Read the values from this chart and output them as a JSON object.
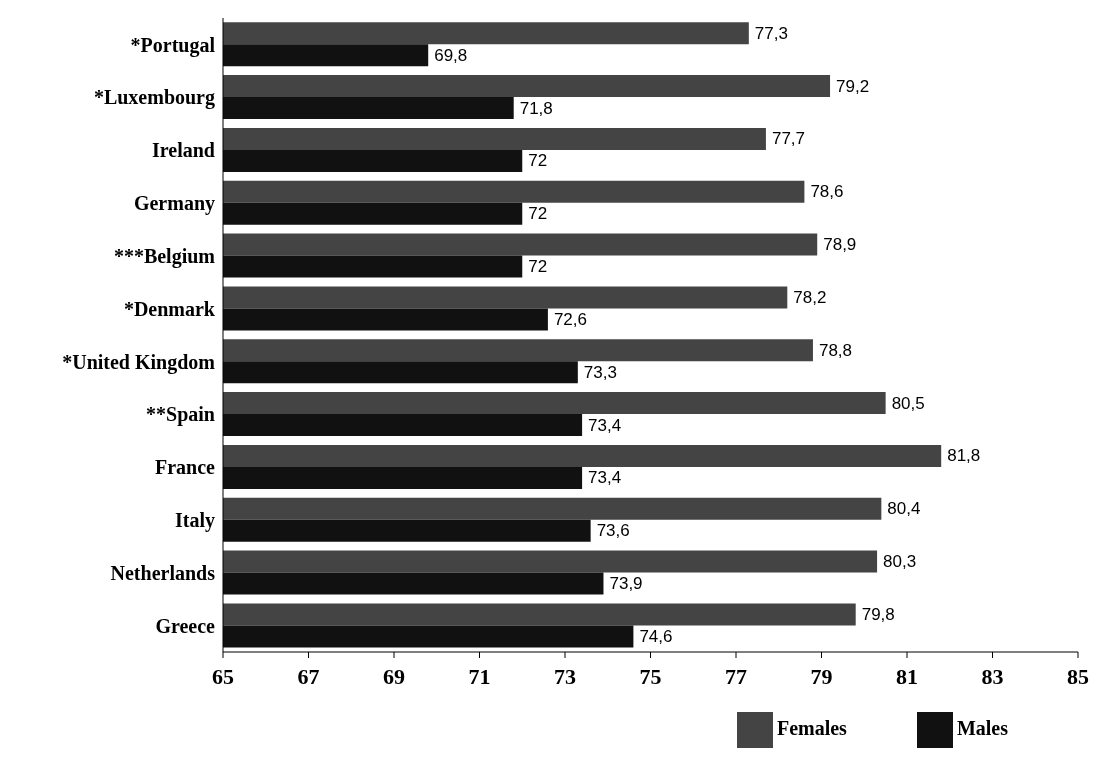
{
  "chart_data": {
    "type": "bar",
    "orientation": "horizontal",
    "categories": [
      "*Portugal",
      "*Luxembourg",
      "Ireland",
      "Germany",
      "***Belgium",
      "*Denmark",
      "*United Kingdom",
      "**Spain",
      "France",
      "Italy",
      "Netherlands",
      "Greece"
    ],
    "series": [
      {
        "name": "Females",
        "color": "#444444",
        "values": [
          77.3,
          79.2,
          77.7,
          78.6,
          78.9,
          78.2,
          78.8,
          80.5,
          81.8,
          80.4,
          80.3,
          79.8
        ],
        "value_labels": [
          "77,3",
          "79,2",
          "77,7",
          "78,6",
          "78,9",
          "78,2",
          "78,8",
          "80,5",
          "81,8",
          "80,4",
          "80,3",
          "79,8"
        ]
      },
      {
        "name": "Males",
        "color": "#111111",
        "values": [
          69.8,
          71.8,
          72,
          72,
          72,
          72.6,
          73.3,
          73.4,
          73.4,
          73.6,
          73.9,
          74.6
        ],
        "value_labels": [
          "69,8",
          "71,8",
          "72",
          "72",
          "72",
          "72,6",
          "73,3",
          "73,4",
          "73,4",
          "73,6",
          "73,9",
          "74,6"
        ]
      }
    ],
    "xlim": [
      65,
      85
    ],
    "xticks": [
      65,
      67,
      69,
      71,
      73,
      75,
      77,
      79,
      81,
      83,
      85
    ],
    "legend": "bottom right"
  }
}
